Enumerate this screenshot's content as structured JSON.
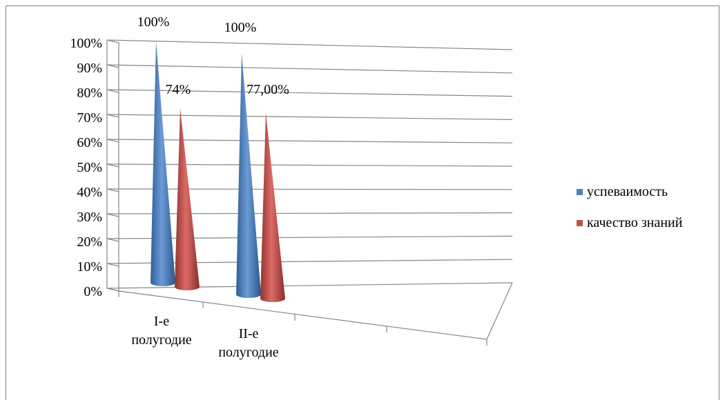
{
  "chart_data": {
    "type": "bar",
    "style": "3d-cone",
    "categories": [
      "I-е полугодие",
      "II-е полугодие"
    ],
    "category_lines": [
      [
        "I-е",
        "полугодие"
      ],
      [
        "II-е",
        "полугодие"
      ]
    ],
    "series": [
      {
        "name": "успеваимость",
        "values": [
          100,
          100
        ],
        "labels": [
          "100%",
          "100%"
        ],
        "color": "#4f81bd"
      },
      {
        "name": "качество знаний",
        "values": [
          74,
          77
        ],
        "labels": [
          "74%",
          "77,00%"
        ],
        "color": "#c0504d"
      }
    ],
    "ylim": [
      0,
      100
    ],
    "y_ticks": [
      "0%",
      "10%",
      "20%",
      "30%",
      "40%",
      "50%",
      "60%",
      "70%",
      "80%",
      "90%",
      "100%"
    ],
    "grid": true,
    "legend_position": "right",
    "title": "",
    "xlabel": "",
    "ylabel": ""
  }
}
